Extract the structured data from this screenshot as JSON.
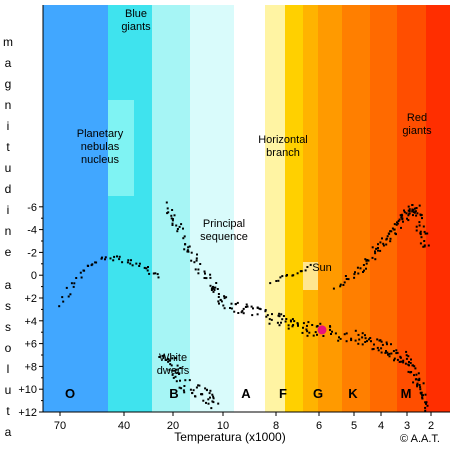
{
  "chart_data": {
    "type": "scatter",
    "ylabel": "m a g n i t u d i n e   a s s o l u t a",
    "xlabel": "Temperatura (x1000)",
    "credit": "© A.A.T.",
    "ylim": [
      -6.5,
      12
    ],
    "y_ticks": [
      -6,
      -4,
      -2,
      0,
      2,
      4,
      6,
      8,
      10,
      12
    ],
    "y_tick_labels": [
      "-6",
      "-4",
      "-2",
      "0",
      "+2",
      "+4",
      "+6",
      "+8",
      "+10",
      "+12"
    ],
    "x_tick_labels": [
      "70",
      "40",
      "20",
      "10",
      "8",
      "6",
      "5",
      "4",
      "3",
      "2"
    ],
    "x_ticks": [
      70,
      40,
      20,
      10,
      8,
      6,
      5,
      4,
      3,
      2
    ],
    "spectral_classes": [
      "O",
      "B",
      "A",
      "F",
      "G",
      "K",
      "M"
    ],
    "spectral_bands": [
      {
        "color": "#41a7ff"
      },
      {
        "color": "#3fe3ee"
      },
      {
        "color": "#a6f5f5"
      },
      {
        "color": "#d9fbfb"
      },
      {
        "color": "#ffffff"
      },
      {
        "color": "#fff4a3"
      },
      {
        "color": "#ffd000"
      },
      {
        "color": "#ffb300"
      },
      {
        "color": "#ff9a00"
      },
      {
        "color": "#ff7f00"
      },
      {
        "color": "#ff6a00"
      },
      {
        "color": "#ff4e00"
      },
      {
        "color": "#ff2e00"
      }
    ],
    "annotations": [
      {
        "text": "Blue giants"
      },
      {
        "text": "Red giants"
      },
      {
        "text": "Planetary nebulas nucleus"
      },
      {
        "text": "Horizontal branch"
      },
      {
        "text": "Principal sequence"
      },
      {
        "text": "Sun"
      },
      {
        "text": "White dwarfs"
      }
    ],
    "sun": {
      "temperature": 6,
      "magnitude": 4.8,
      "color": "#e8127a"
    },
    "series": [
      {
        "group": "main-sequence",
        "x": [
          22,
          20,
          18,
          16,
          14,
          12,
          11,
          10,
          9.5,
          9,
          8.5,
          8,
          7.5,
          7,
          6.5,
          6,
          5.5,
          5,
          4.6,
          4.2,
          3.9,
          3.6,
          3.3,
          3.0,
          2.8,
          2.6,
          2.4,
          2.3,
          2.2
        ],
        "y": [
          -6.1,
          -5.0,
          -3.5,
          -2.0,
          -0.5,
          0.8,
          1.5,
          2.2,
          2.7,
          3.0,
          3.4,
          3.7,
          4.0,
          4.3,
          4.6,
          4.8,
          5.1,
          5.4,
          5.7,
          6.0,
          6.3,
          6.6,
          7.0,
          7.5,
          8.2,
          9.0,
          10.0,
          10.8,
          11.8
        ]
      },
      {
        "group": "red-giants",
        "x": [
          5.5,
          5.0,
          4.6,
          4.3,
          4.0,
          3.7,
          3.4,
          3.2,
          3.0,
          2.8,
          2.6,
          2.5,
          2.3,
          2.2
        ],
        "y": [
          0.8,
          -0.1,
          -1.0,
          -2.0,
          -2.8,
          -3.6,
          -4.3,
          -5.0,
          -5.4,
          -5.8,
          -6.1,
          -4.8,
          -3.5,
          -2.6
        ]
      },
      {
        "group": "planetary-nebulas",
        "x": [
          70,
          66,
          62,
          58,
          54,
          50,
          46,
          42,
          38,
          34,
          30,
          27,
          24
        ],
        "y": [
          2.5,
          1.4,
          0.5,
          -0.5,
          -1.1,
          -1.5,
          -1.6,
          -1.5,
          -1.3,
          -1.0,
          -0.6,
          -0.3,
          0.1
        ]
      },
      {
        "group": "horizontal-branch",
        "x": [
          8.2,
          7.8,
          7.4,
          7.0,
          6.6,
          6.2
        ],
        "y": [
          0.5,
          0.2,
          -0.1,
          -0.2,
          -0.6,
          -1.0
        ]
      },
      {
        "group": "white-dwarfs",
        "x": [
          24,
          22,
          20,
          19,
          18,
          16,
          14,
          13,
          12,
          11.5
        ],
        "y": [
          7.0,
          7.5,
          8.0,
          8.7,
          9.3,
          9.8,
          10.2,
          10.6,
          11.0,
          11.4
        ]
      }
    ]
  }
}
